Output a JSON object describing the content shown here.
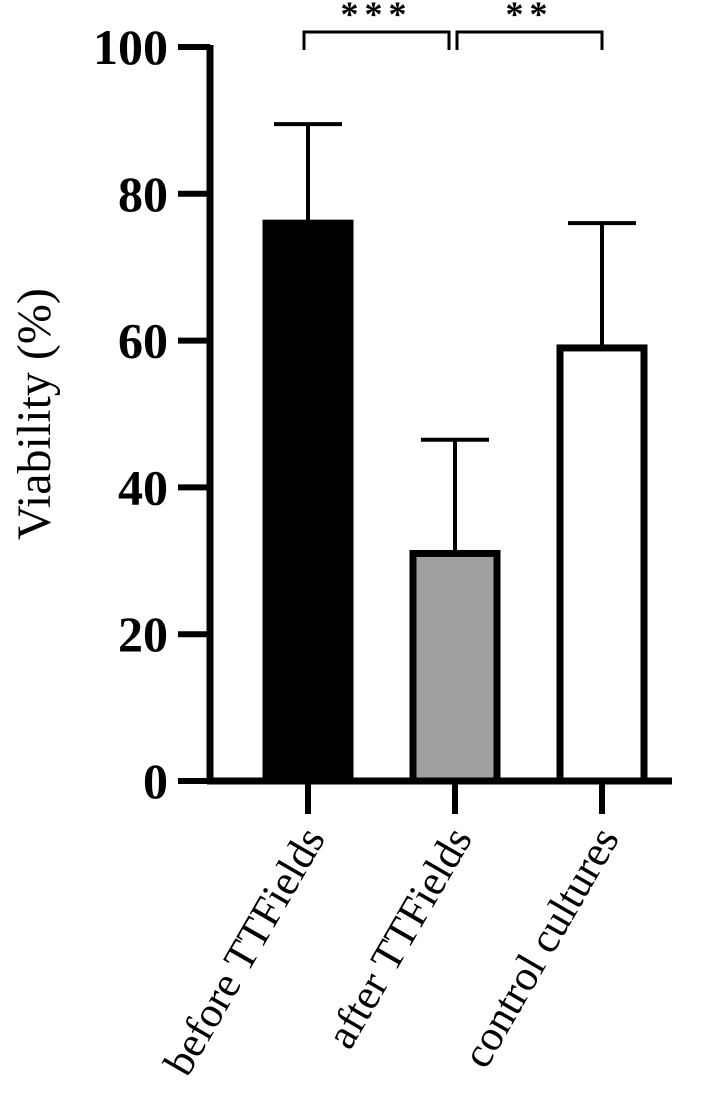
{
  "chart_data": {
    "type": "bar",
    "categories": [
      "before TTFields",
      "after TTFields",
      "control cultures"
    ],
    "values": [
      76,
      31,
      59
    ],
    "errors_upper": [
      89.5,
      46.5,
      76
    ],
    "colors": [
      "#000000",
      "#a0a0a0",
      "#ffffff"
    ],
    "title": "",
    "xlabel": "",
    "ylabel": "Viability (%)",
    "ylim": [
      0,
      100
    ],
    "yticks": [
      "0",
      "20",
      "40",
      "60",
      "80",
      "100"
    ],
    "grid": false,
    "significance": [
      {
        "from": 0,
        "to": 1,
        "label": "***"
      },
      {
        "from": 1,
        "to": 2,
        "label": "**"
      }
    ]
  }
}
